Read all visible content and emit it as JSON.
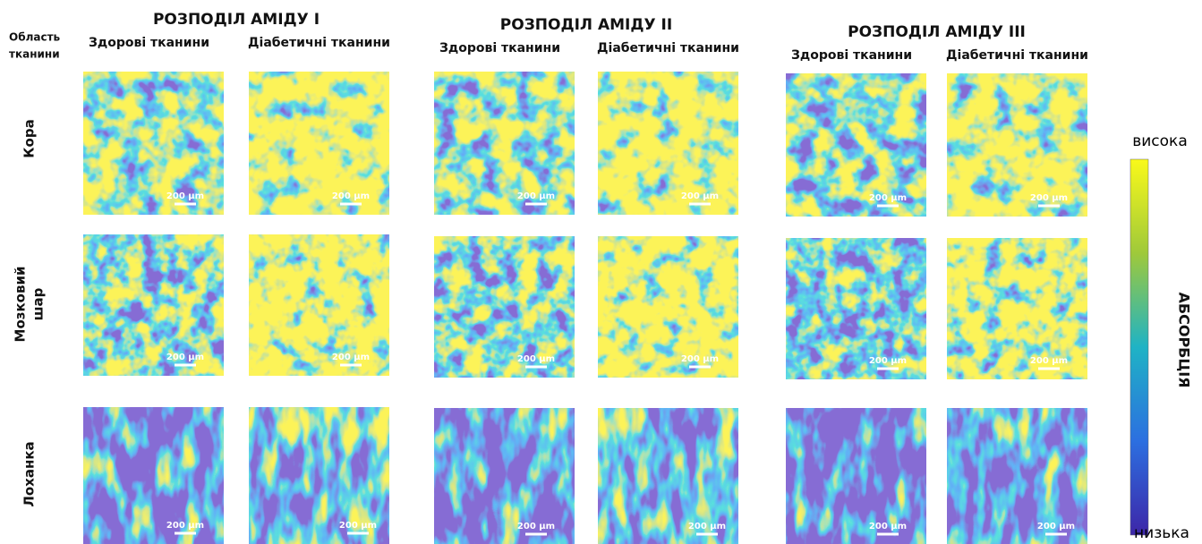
{
  "row_header": [
    "Область",
    "тканини"
  ],
  "groups": [
    {
      "title": "РОЗПОДІЛ  АМІДУ І",
      "columns": [
        "Здорові тканини",
        "Діабетичні тканини"
      ]
    },
    {
      "title": "РОЗПОДІЛ  АМІДУ ІІ",
      "columns": [
        "Здорові тканини",
        "Діабетичні тканини"
      ]
    },
    {
      "title": "РОЗПОДІЛ  АМІДУ ІІІ",
      "columns": [
        "Здорові тканини",
        "Діабетичні тканини"
      ]
    }
  ],
  "rows": [
    {
      "label": [
        "Кора"
      ]
    },
    {
      "label": [
        "Мозковий",
        "шар"
      ]
    },
    {
      "label": [
        "Лоханка"
      ]
    }
  ],
  "scale_bar": "200 µm",
  "colorbar": {
    "high": "висока",
    "low": "низька",
    "label": "АБСОРБЦІЯ"
  }
}
